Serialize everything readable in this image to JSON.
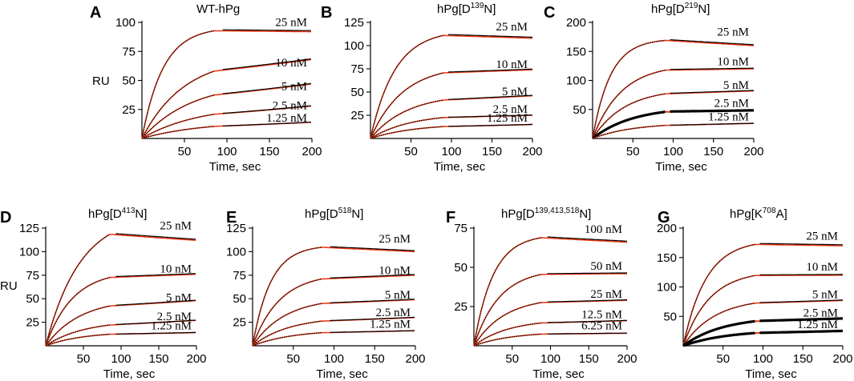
{
  "figure": {
    "x_label": "Time, sec",
    "y_label": "RU"
  },
  "colors": {
    "data": "#000000",
    "fit": "#f03a17"
  },
  "chart_data": [
    {
      "type": "line",
      "letter": "A",
      "title": "WT-hPg",
      "xlabel": "Time, sec",
      "ylabel": "RU",
      "show_ylabel": true,
      "xlim": [
        0,
        200
      ],
      "ylim": [
        0,
        100
      ],
      "xticks": [
        50,
        100,
        150,
        200
      ],
      "yticks": [
        25,
        50,
        75,
        100
      ],
      "assoc_end": 85,
      "dissoc_start": 95,
      "series": [
        {
          "name": "25 nM",
          "label": "25 nM",
          "plateau": 96,
          "kobs": 0.04,
          "end_value": 92,
          "bold": false
        },
        {
          "name": "10 nM",
          "label": "10 nM",
          "plateau": 71,
          "kobs": 0.02,
          "end_value": 68,
          "bold": false
        },
        {
          "name": "5 nM",
          "label": "5 nM",
          "plateau": 49,
          "kobs": 0.017,
          "end_value": 47,
          "bold": false
        },
        {
          "name": "2.5 nM",
          "label": "2.5 nM",
          "plateau": 29,
          "kobs": 0.015,
          "end_value": 28,
          "bold": false
        },
        {
          "name": "1.25 nM",
          "label": "1.25 nM",
          "plateau": 15,
          "kobs": 0.014,
          "end_value": 14,
          "bold": false
        }
      ]
    },
    {
      "type": "line",
      "letter": "B",
      "title": "hPg[D139N]",
      "title_parts": {
        "pre": "hPg[D",
        "sup": "139",
        "post": "N]"
      },
      "xlabel": "Time, sec",
      "show_ylabel": false,
      "xlim": [
        0,
        200
      ],
      "ylim": [
        0,
        125
      ],
      "xticks": [
        50,
        100,
        150,
        200
      ],
      "yticks": [
        25,
        50,
        75,
        100,
        125
      ],
      "assoc_end": 90,
      "dissoc_start": 95,
      "series": [
        {
          "name": "25 nM",
          "label": "25 nM",
          "plateau": 117,
          "kobs": 0.033,
          "end_value": 108,
          "bold": false
        },
        {
          "name": "10 nM",
          "label": "10 nM",
          "plateau": 79,
          "kobs": 0.025,
          "end_value": 74,
          "bold": false
        },
        {
          "name": "5 nM",
          "label": "5 nM",
          "plateau": 48,
          "kobs": 0.022,
          "end_value": 46,
          "bold": false
        },
        {
          "name": "2.5 nM",
          "label": "2.5 nM",
          "plateau": 27,
          "kobs": 0.02,
          "end_value": 25,
          "bold": false
        },
        {
          "name": "1.25 nM",
          "label": "1.25 nM",
          "plateau": 16,
          "kobs": 0.018,
          "end_value": 15,
          "bold": false
        }
      ]
    },
    {
      "type": "line",
      "letter": "C",
      "title": "hPg[D219N]",
      "title_parts": {
        "pre": "hPg[D",
        "sup": "219",
        "post": "N]"
      },
      "xlabel": "Time, sec",
      "show_ylabel": false,
      "xlim": [
        0,
        200
      ],
      "ylim": [
        0,
        200
      ],
      "xticks": [
        50,
        100,
        150,
        200
      ],
      "yticks": [
        50,
        100,
        150,
        200
      ],
      "assoc_end": 90,
      "dissoc_start": 95,
      "series": [
        {
          "name": "25 nM",
          "label": "25 nM",
          "plateau": 172,
          "kobs": 0.045,
          "end_value": 160,
          "bold": false
        },
        {
          "name": "10 nM",
          "label": "10 nM",
          "plateau": 128,
          "kobs": 0.028,
          "end_value": 120,
          "bold": false
        },
        {
          "name": "5 nM",
          "label": "5 nM",
          "plateau": 86,
          "kobs": 0.025,
          "end_value": 82,
          "bold": false
        },
        {
          "name": "2.5 nM",
          "label": "2.5 nM",
          "plateau": 55,
          "kobs": 0.02,
          "end_value": 48,
          "bold": true
        },
        {
          "name": "1.25 nM",
          "label": "1.25 nM",
          "plateau": 27,
          "kobs": 0.02,
          "end_value": 26,
          "bold": false
        }
      ]
    },
    {
      "type": "line",
      "letter": "D",
      "title": "hPg[D413N]",
      "title_parts": {
        "pre": "hPg[D",
        "sup": "413",
        "post": "N]"
      },
      "xlabel": "Time, sec",
      "ylabel": "RU",
      "show_ylabel": true,
      "xlim": [
        0,
        200
      ],
      "ylim": [
        0,
        125
      ],
      "xticks": [
        50,
        100,
        150,
        200
      ],
      "yticks": [
        25,
        50,
        75,
        100,
        125
      ],
      "assoc_end": 85,
      "dissoc_start": 92,
      "series": [
        {
          "name": "25 nM",
          "label": "25 nM",
          "plateau": 140,
          "kobs": 0.022,
          "end_value": 112,
          "bold": false
        },
        {
          "name": "10 nM",
          "label": "10 nM",
          "plateau": 80,
          "kobs": 0.028,
          "end_value": 76,
          "bold": false
        },
        {
          "name": "5 nM",
          "label": "5 nM",
          "plateau": 50,
          "kobs": 0.022,
          "end_value": 48,
          "bold": false
        },
        {
          "name": "2.5 nM",
          "label": "2.5 nM",
          "plateau": 27,
          "kobs": 0.02,
          "end_value": 27,
          "bold": false
        },
        {
          "name": "1.25 nM",
          "label": "1.25 nM",
          "plateau": 15,
          "kobs": 0.02,
          "end_value": 14,
          "bold": false
        }
      ]
    },
    {
      "type": "line",
      "letter": "E",
      "title": "hPg[D518N]",
      "title_parts": {
        "pre": "hPg[D",
        "sup": "518",
        "post": "N]"
      },
      "xlabel": "Time, sec",
      "show_ylabel": false,
      "xlim": [
        0,
        200
      ],
      "ylim": [
        0,
        125
      ],
      "xticks": [
        50,
        100,
        150,
        200
      ],
      "yticks": [
        25,
        50,
        75,
        100,
        125
      ],
      "assoc_end": 85,
      "dissoc_start": 95,
      "series": [
        {
          "name": "25 nM",
          "label": "25 nM",
          "plateau": 107,
          "kobs": 0.045,
          "end_value": 100,
          "bold": false
        },
        {
          "name": "10 nM",
          "label": "10 nM",
          "plateau": 77,
          "kobs": 0.03,
          "end_value": 75,
          "bold": false
        },
        {
          "name": "5 nM",
          "label": "5 nM",
          "plateau": 51,
          "kobs": 0.025,
          "end_value": 49,
          "bold": false
        },
        {
          "name": "2.5 nM",
          "label": "2.5 nM",
          "plateau": 31,
          "kobs": 0.022,
          "end_value": 30,
          "bold": false
        },
        {
          "name": "1.25 nM",
          "label": "1.25 nM",
          "plateau": 17,
          "kobs": 0.02,
          "end_value": 16,
          "bold": false
        }
      ]
    },
    {
      "type": "line",
      "letter": "F",
      "title": "hPg[D139,413,518N]",
      "title_parts": {
        "pre": "hPg[D",
        "sup": "139,413,518",
        "post": "N]"
      },
      "xlabel": "Time, sec",
      "show_ylabel": false,
      "xlim": [
        0,
        200
      ],
      "ylim": [
        0,
        75
      ],
      "xticks": [
        50,
        100,
        150,
        200
      ],
      "yticks": [
        25,
        50,
        75
      ],
      "assoc_end": 88,
      "dissoc_start": 95,
      "series": [
        {
          "name": "100 nM",
          "label": "100 nM",
          "plateau": 71,
          "kobs": 0.04,
          "end_value": 66,
          "bold": false
        },
        {
          "name": "50 nM",
          "label": "50 nM",
          "plateau": 49,
          "kobs": 0.03,
          "end_value": 46,
          "bold": false
        },
        {
          "name": "25 nM",
          "label": "25 nM",
          "plateau": 31,
          "kobs": 0.025,
          "end_value": 29,
          "bold": false
        },
        {
          "name": "12.5 nM",
          "label": "12.5 nM",
          "plateau": 17,
          "kobs": 0.022,
          "end_value": 16,
          "bold": false
        },
        {
          "name": "6.25 nM",
          "label": "6.25 nM",
          "plateau": 9,
          "kobs": 0.02,
          "end_value": 8,
          "bold": false
        }
      ]
    },
    {
      "type": "line",
      "letter": "G",
      "title": "hPg[K708A]",
      "title_parts": {
        "pre": "hPg[K",
        "sup": "708",
        "post": "A]"
      },
      "xlabel": "Time, sec",
      "show_ylabel": false,
      "xlim": [
        0,
        200
      ],
      "ylim": [
        0,
        200
      ],
      "xticks": [
        50,
        100,
        150,
        200
      ],
      "yticks": [
        50,
        100,
        150,
        200
      ],
      "assoc_end": 90,
      "dissoc_start": 95,
      "series": [
        {
          "name": "25 nM",
          "label": "25 nM",
          "plateau": 180,
          "kobs": 0.035,
          "end_value": 170,
          "bold": false
        },
        {
          "name": "10 nM",
          "label": "10 nM",
          "plateau": 128,
          "kobs": 0.03,
          "end_value": 120,
          "bold": false
        },
        {
          "name": "5 nM",
          "label": "5 nM",
          "plateau": 81,
          "kobs": 0.025,
          "end_value": 77,
          "bold": false
        },
        {
          "name": "2.5 nM",
          "label": "2.5 nM",
          "plateau": 50,
          "kobs": 0.02,
          "end_value": 46,
          "bold": true
        },
        {
          "name": "1.25 nM",
          "label": "1.25 nM",
          "plateau": 27,
          "kobs": 0.018,
          "end_value": 25,
          "bold": true
        }
      ]
    }
  ]
}
